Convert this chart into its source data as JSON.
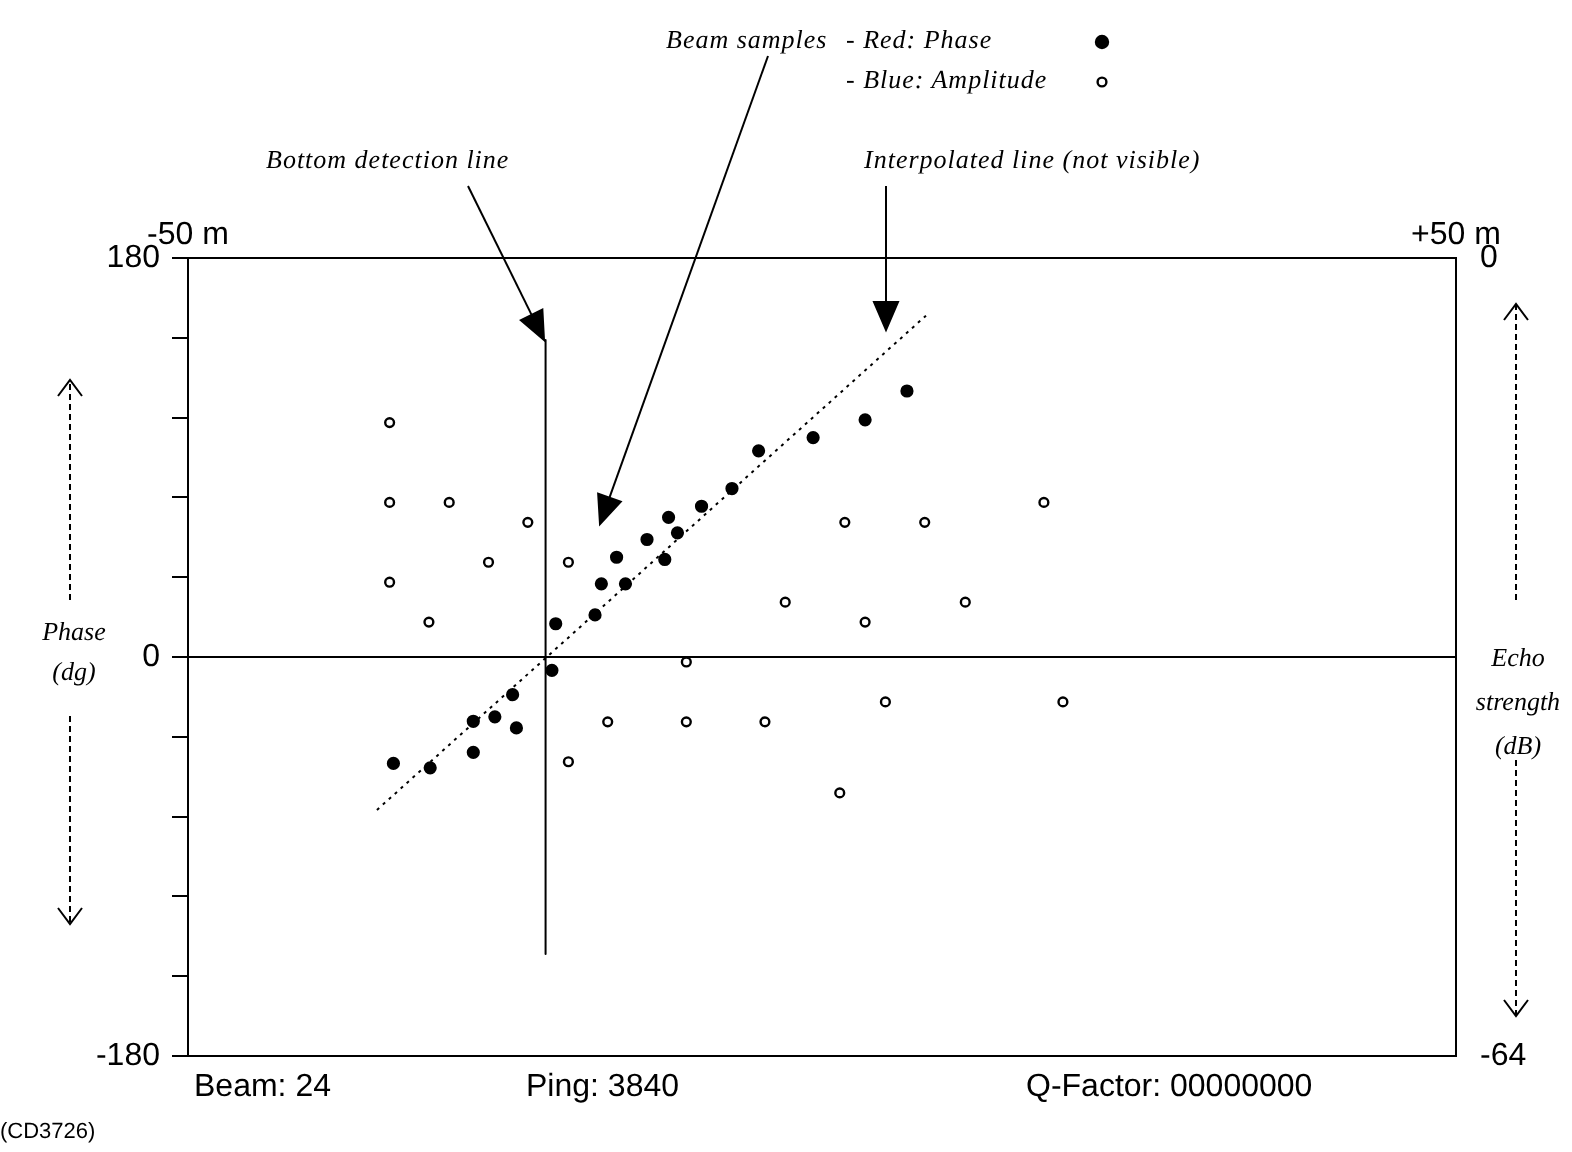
{
  "chart_data": {
    "type": "scatter",
    "legend_title": "Beam samples",
    "ylabel": "Phase (dg)",
    "y2label": "Echo strength (dB)",
    "xlim": [
      -50,
      50
    ],
    "xticks": [
      {
        "value": -50,
        "label": "-50 m"
      },
      {
        "value": 50,
        "label": "+50 m"
      }
    ],
    "ylim": [
      -180,
      180
    ],
    "yticks": [
      -180,
      {
        "value": -144,
        "label": null
      },
      {
        "value": -108,
        "label": null
      },
      {
        "value": -72,
        "label": null
      },
      {
        "value": -36,
        "label": null
      },
      0,
      {
        "value": 36,
        "label": null
      },
      {
        "value": 72,
        "label": null
      },
      {
        "value": 108,
        "label": null
      },
      {
        "value": 144,
        "label": null
      },
      180
    ],
    "y2lim": [
      -64,
      0
    ],
    "y2ticks": [
      -64,
      0
    ],
    "legend": "top",
    "series": [
      {
        "type": "scatter",
        "name": "- Red: Phase",
        "color": "#000000",
        "marker": "circle",
        "x": [
          -21.0,
          -21.3,
          -17.9,
          -17.4,
          -15.5,
          -16.2,
          -13.8,
          -12.4,
          -11.4,
          -12.1,
          -9.5,
          -7.1,
          -5.0,
          -0.7,
          3.4,
          6.7,
          -24.4,
          -25.8,
          -27.5,
          -24.1,
          -27.5,
          -33.8,
          -30.9
        ],
        "values": [
          15,
          -6,
          19,
          33,
          33,
          45,
          53,
          44,
          56,
          63,
          68,
          76,
          93,
          99,
          107,
          120,
          -17,
          -27,
          -29,
          -32,
          -43,
          -48,
          -50
        ]
      },
      {
        "type": "scatter",
        "name": "- Blue: Amplitude",
        "color": "#000000",
        "marker": "circle",
        "axis": "y2",
        "x": [
          -34.1,
          -34.1,
          -29.4,
          -23.2,
          -26.3,
          -20.0,
          -34.1,
          -31.0,
          -10.7,
          17.5,
          1.8,
          8.1,
          -2.9,
          3.4,
          11.3,
          -16.9,
          -10.7,
          -4.5,
          -20.0,
          5.0,
          19.0,
          1.4
        ],
        "values": [
          -13.2,
          -19.6,
          -19.6,
          -21.2,
          -24.4,
          -24.4,
          -26.0,
          -29.2,
          -32.4,
          -19.6,
          -21.2,
          -21.2,
          -27.6,
          -29.2,
          -27.6,
          -37.2,
          -37.2,
          -37.2,
          -40.4,
          -35.6,
          -35.6,
          -42.9
        ]
      },
      {
        "type": "line",
        "color": "#000000",
        "marker": "none",
        "line_style": "dotted",
        "x": [
          -35.1,
          8.2
        ],
        "values": [
          -69,
          154
        ]
      },
      {
        "type": "line",
        "color": "#000000",
        "marker": "none",
        "line_style": "solid",
        "x": [
          -21.8,
          -21.8
        ],
        "values": [
          143,
          -134
        ]
      }
    ],
    "ref_lines": [
      {
        "axis": "y",
        "value": 0
      }
    ],
    "annotations": [
      "Bottom detection line",
      "Interpolated line (not visible)",
      "Beam: 24",
      "Ping: 3840",
      "Q-Factor: 00000000",
      "(CD3726)"
    ]
  }
}
